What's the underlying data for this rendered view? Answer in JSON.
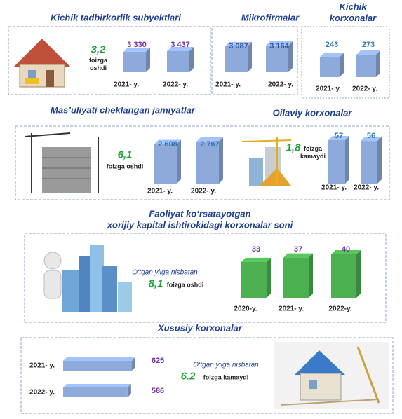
{
  "chart_data": [
    {
      "type": "bar",
      "title": "Kichik tadbirkorlik subyektlari",
      "categories": [
        "2021- y.",
        "2022- y."
      ],
      "values": [
        3330,
        3437
      ],
      "value_labels": [
        "3 330",
        "3 437"
      ],
      "color": "#8eaadb",
      "label_color": "#7030a0",
      "annotation_value": "3,2",
      "annotation_text": "foizga oshdi"
    },
    {
      "type": "bar",
      "title": "Mikrofirmalar",
      "categories": [
        "2021- y.",
        "2022- y."
      ],
      "values": [
        3087,
        3164
      ],
      "value_labels": [
        "3 087",
        "3 164"
      ],
      "color": "#8eaadb",
      "label_color": "#2e5597"
    },
    {
      "type": "bar",
      "title": "Kichik korxonalar",
      "categories": [
        "2021- y.",
        "2022- y."
      ],
      "values": [
        243,
        273
      ],
      "color": "#8eaadb",
      "label_color": "#2e75b6"
    },
    {
      "type": "bar",
      "title": "Mas’uliyati cheklangan jamiyatlar",
      "categories": [
        "2021- y.",
        "2022- y."
      ],
      "values": [
        2608,
        2767
      ],
      "value_labels": [
        "2 608",
        "2 767"
      ],
      "color": "#8eaadb",
      "label_color": "#2e75b6",
      "annotation_value": "6,1",
      "annotation_text": "foizga oshdi"
    },
    {
      "type": "bar",
      "title": "Oilaviy korxonalar",
      "categories": [
        "2021- y.",
        "2022- y."
      ],
      "values": [
        57,
        56
      ],
      "color": "#8eaadb",
      "label_color": "#2e75b6",
      "annotation_value": "1,8",
      "annotation_text": "foizga kamaydi"
    },
    {
      "type": "bar",
      "title": [
        "Faoliyat ko‘rsatayotgan",
        "xorijiy kapital ishtirokidagi korxonalar soni"
      ],
      "categories": [
        "2020-y.",
        "2021- y.",
        "2022-y."
      ],
      "values": [
        33,
        37,
        40
      ],
      "color": "#4caf50",
      "label_color": "#7030a0",
      "annotation_intro": "O‘tgan yilga nisbatan",
      "annotation_value": "8,1",
      "annotation_text": "foizga oshdi"
    },
    {
      "type": "bar",
      "orientation": "horizontal",
      "title": "Xususiy korxonalar",
      "categories": [
        "2021- y.",
        "2022- y."
      ],
      "values": [
        625,
        586
      ],
      "color": "#8eaadb",
      "label_color": "#7030a0",
      "annotation_intro": "O‘tgan yilga nisbatan",
      "annotation_value": "6.2",
      "annotation_text": "foizga kamaydi"
    }
  ]
}
